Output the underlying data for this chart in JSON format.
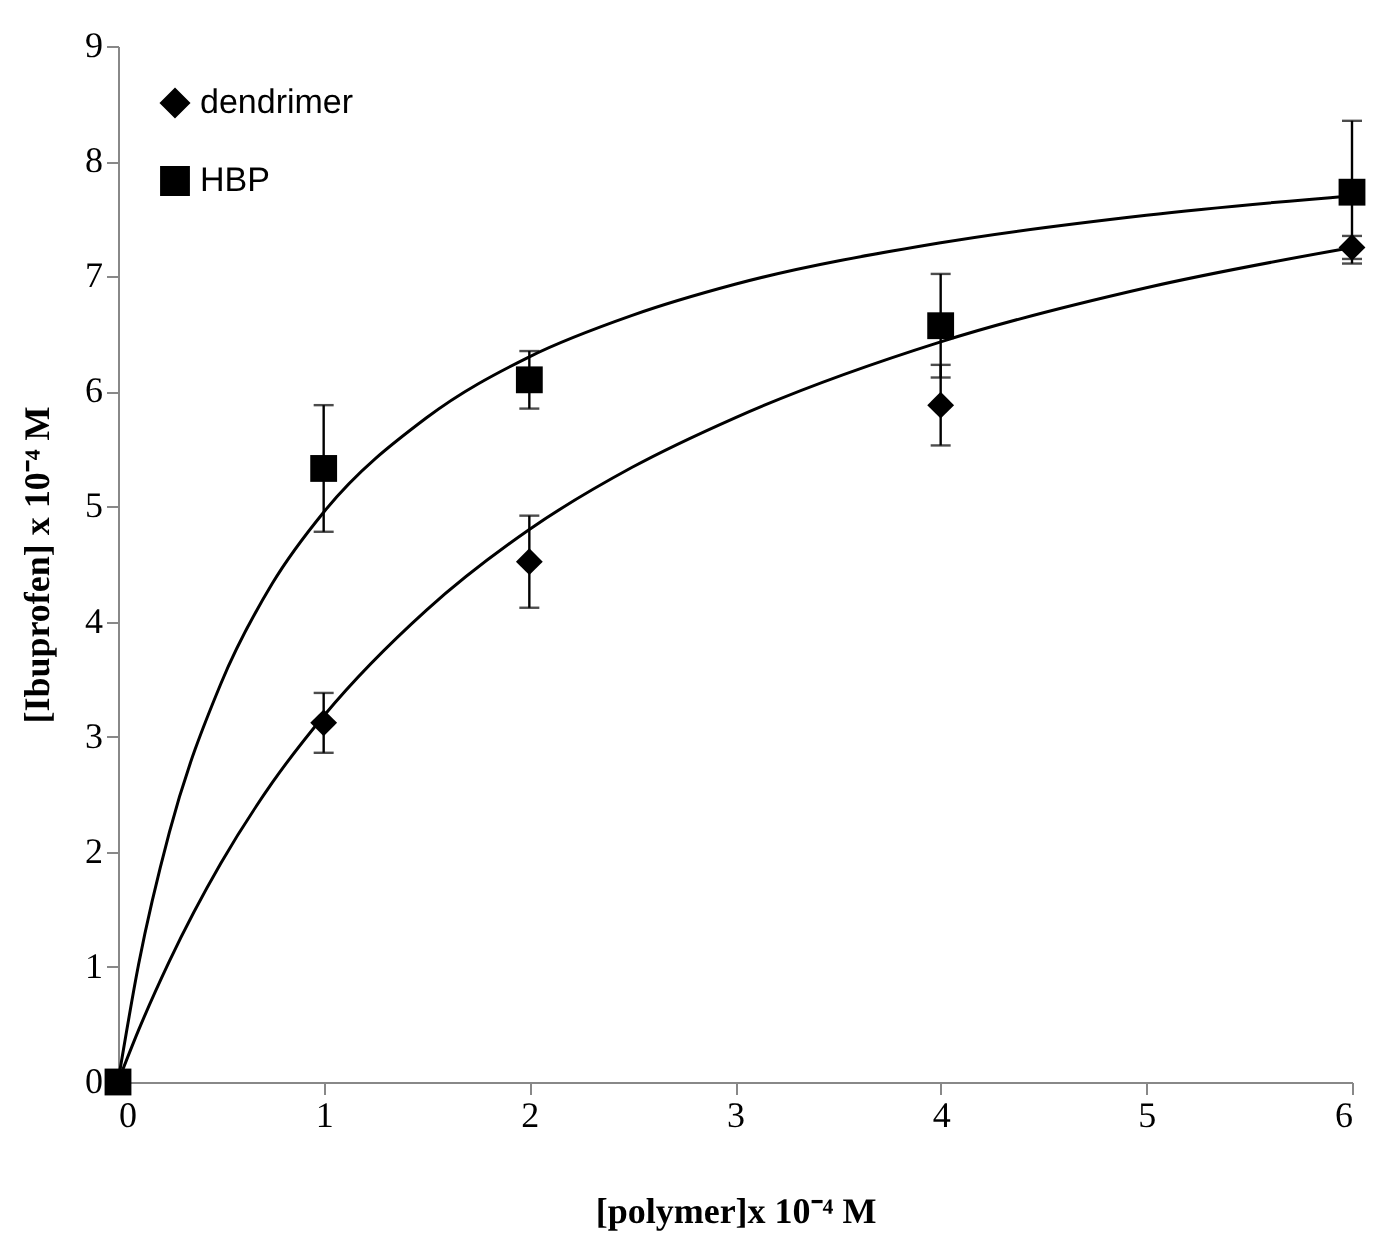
{
  "chart_data": {
    "type": "scatter",
    "xlabel": "[polymer]x 10⁻⁴ M",
    "ylabel": "[Ibuprofen] x 10⁻⁴ M",
    "xlim": [
      0,
      6
    ],
    "xticks": [
      0,
      1,
      2,
      3,
      4,
      5,
      6
    ],
    "ylim": [
      0,
      9
    ],
    "yticks": [
      0,
      1,
      2,
      3,
      4,
      5,
      6,
      7,
      8,
      9
    ],
    "grid": false,
    "legend": "top left",
    "series": [
      {
        "name": "dendrimer",
        "marker": "diamond",
        "color": "#000000",
        "x": [
          1,
          2,
          4,
          6
        ],
        "values": [
          3.12,
          4.52,
          5.88,
          7.25
        ],
        "errors": [
          0.26,
          0.4,
          0.35,
          0.1
        ]
      },
      {
        "name": "HBP",
        "marker": "square",
        "color": "#000000",
        "x": [
          0,
          1,
          2,
          4,
          6
        ],
        "values": [
          0,
          5.33,
          6.1,
          6.57,
          7.73
        ],
        "errors": [
          null,
          0.55,
          0.25,
          0.45,
          0.62
        ]
      },
      {
        "type": "line",
        "color": "#000000",
        "x": [
          0,
          0.1,
          0.25,
          0.5,
          0.75,
          1,
          1.5,
          2,
          2.5,
          3,
          4,
          5,
          6
        ],
        "values": [
          0,
          0.45,
          1.05,
          1.9,
          2.6,
          3.18,
          4.1,
          4.8,
          5.34,
          5.77,
          6.43,
          6.9,
          7.25
        ]
      },
      {
        "type": "line",
        "color": "#000000",
        "x": [
          0,
          0.1,
          0.25,
          0.5,
          0.75,
          1,
          1.5,
          2,
          2.5,
          3,
          4,
          5,
          6
        ],
        "values": [
          0,
          1.02,
          2.17,
          3.46,
          4.33,
          4.95,
          5.77,
          6.3,
          6.66,
          6.93,
          7.29,
          7.53,
          7.7
        ]
      }
    ]
  }
}
